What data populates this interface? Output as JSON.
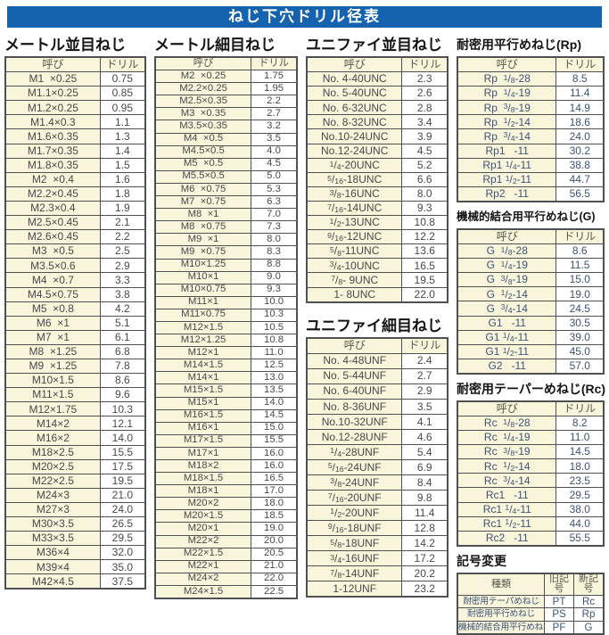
{
  "page_title": "ねじ下穴ドリル径表",
  "colors": {
    "title_bar_bg": "#1563ae",
    "title_bar_text": "#ffffff",
    "cell_yellow": "#f8f5da",
    "border_gray": "#4f5052",
    "text_dark": "#47494c",
    "text_navy": "#3d5378"
  },
  "col_headers": {
    "name": "呼び",
    "drill": "ドリル"
  },
  "corner_mark": "--",
  "tables": [
    {
      "id": "metric_coarse",
      "title": "メートル並目ねじ",
      "rows": [
        [
          "M1  ×0.25",
          "0.75"
        ],
        [
          "M1.1×0.25",
          "0.85"
        ],
        [
          "M1.2×0.25",
          "0.95"
        ],
        [
          "M1.4×0.3",
          "1.1"
        ],
        [
          "M1.6×0.35",
          "1.3"
        ],
        [
          "M1.7×0.35",
          "1.4"
        ],
        [
          "M1.8×0.35",
          "1.5"
        ],
        [
          "M2  ×0.4",
          "1.6"
        ],
        [
          "M2.2×0.45",
          "1.8"
        ],
        [
          "M2.3×0.4",
          "1.9"
        ],
        [
          "M2.5×0.45",
          "2.1"
        ],
        [
          "M2.6×0.45",
          "2.2"
        ],
        [
          "M3  ×0.5",
          "2.5"
        ],
        [
          "M3.5×0.6",
          "2.9"
        ],
        [
          "M4  ×0.7",
          "3.3"
        ],
        [
          "M4.5×0.75",
          "3.8"
        ],
        [
          "M5  ×0.8",
          "4.2"
        ],
        [
          "M6  ×1",
          "5.1"
        ],
        [
          "M7  ×1",
          "6.1"
        ],
        [
          "M8  ×1.25",
          "6.8"
        ],
        [
          "M9  ×1.25",
          "7.8"
        ],
        [
          "M10×1.5",
          "8.6"
        ],
        [
          "M11×1.5",
          "9.6"
        ],
        [
          "M12×1.75",
          "10.3"
        ],
        [
          "M14×2",
          "12.1"
        ],
        [
          "M16×2",
          "14.0"
        ],
        [
          "M18×2.5",
          "15.5"
        ],
        [
          "M20×2.5",
          "17.5"
        ],
        [
          "M22×2.5",
          "19.5"
        ],
        [
          "M24×3",
          "21.0"
        ],
        [
          "M27×3",
          "24.0"
        ],
        [
          "M30×3.5",
          "26.5"
        ],
        [
          "M33×3.5",
          "29.5"
        ],
        [
          "M36×4",
          "32.0"
        ],
        [
          "M39×4",
          "35.0"
        ],
        [
          "M42×4.5",
          "37.5"
        ]
      ]
    },
    {
      "id": "metric_fine",
      "title": "メートル細目ねじ",
      "rows": [
        [
          "M2  ×0.25",
          "1.75"
        ],
        [
          "M2.2×0.25",
          "1.95"
        ],
        [
          "M2.5×0.35",
          "2.2"
        ],
        [
          "M3  ×0.35",
          "2.7"
        ],
        [
          "M3.5×0.35",
          "3.2"
        ],
        [
          "M4  ×0.5",
          "3.5"
        ],
        [
          "M4.5×0.5",
          "4.0"
        ],
        [
          "M5  ×0.5",
          "4.5"
        ],
        [
          "M5.5×0.5",
          "5.0"
        ],
        [
          "M6  ×0.75",
          "5.3"
        ],
        [
          "M7  ×0.75",
          "6.3"
        ],
        [
          "M8  ×1",
          "7.0"
        ],
        [
          "M8  ×0.75",
          "7.3"
        ],
        [
          "M9  ×1",
          "8.0"
        ],
        [
          "M9  ×0.75",
          "8.3"
        ],
        [
          "M10×1.25",
          "8.8"
        ],
        [
          "M10×1",
          "9.0"
        ],
        [
          "M10×0.75",
          "9.3"
        ],
        [
          "M11×1",
          "10.0"
        ],
        [
          "M11×0.75",
          "10.3"
        ],
        [
          "M12×1.5",
          "10.5"
        ],
        [
          "M12×1.25",
          "10.8"
        ],
        [
          "M12×1",
          "11.0"
        ],
        [
          "M14×1.5",
          "12.5"
        ],
        [
          "M14×1",
          "13.0"
        ],
        [
          "M15×1.5",
          "13.5"
        ],
        [
          "M15×1",
          "14.0"
        ],
        [
          "M16×1.5",
          "14.5"
        ],
        [
          "M16×1",
          "15.0"
        ],
        [
          "M17×1.5",
          "15.5"
        ],
        [
          "M17×1",
          "16.0"
        ],
        [
          "M18×2",
          "16.0"
        ],
        [
          "M18×1.5",
          "16.5"
        ],
        [
          "M18×1",
          "17.0"
        ],
        [
          "M20×2",
          "18.0"
        ],
        [
          "M20×1.5",
          "18.5"
        ],
        [
          "M20×1",
          "19.0"
        ],
        [
          "M22×2",
          "20.0"
        ],
        [
          "M22×1.5",
          "20.5"
        ],
        [
          "M22×1",
          "21.0"
        ],
        [
          "M24×2",
          "22.0"
        ],
        [
          "M24×1.5",
          "22.5"
        ]
      ]
    },
    {
      "id": "unified_coarse",
      "title": "ユニファイ並目ねじ",
      "rows": [
        [
          "No. 4-40UNC",
          "2.3"
        ],
        [
          "No. 5-40UNC",
          "2.6"
        ],
        [
          "No. 6-32UNC",
          "2.8"
        ],
        [
          "No. 8-32UNC",
          "3.4"
        ],
        [
          "No.10-24UNC",
          "3.9"
        ],
        [
          "No.12-24UNC",
          "4.5"
        ],
        [
          "1/4-20UNC",
          "5.2"
        ],
        [
          "5/16-18UNC",
          "6.6"
        ],
        [
          "3/8-16UNC",
          "8.0"
        ],
        [
          "7/16-14UNC",
          "9.3"
        ],
        [
          "1/2-13UNC",
          "10.8"
        ],
        [
          "9/16-12UNC",
          "12.2"
        ],
        [
          "5/8-11UNC",
          "13.6"
        ],
        [
          "3/4-10UNC",
          "16.5"
        ],
        [
          "7/8- 9UNC",
          "19.5"
        ],
        [
          "1- 8UNC",
          "22.0"
        ]
      ]
    },
    {
      "id": "unified_fine",
      "title": "ユニファイ細目ねじ",
      "rows": [
        [
          "No. 4-48UNF",
          "2.4"
        ],
        [
          "No. 5-44UNF",
          "2.7"
        ],
        [
          "No. 6-40UNF",
          "2.9"
        ],
        [
          "No. 8-36UNF",
          "3.5"
        ],
        [
          "No.10-32UNF",
          "4.1"
        ],
        [
          "No.12-28UNF",
          "4.6"
        ],
        [
          "1/4-28UNF",
          "5.4"
        ],
        [
          "5/16-24UNF",
          "6.9"
        ],
        [
          "3/8-24UNF",
          "8.4"
        ],
        [
          "7/16-20UNF",
          "9.8"
        ],
        [
          "1/2-20UNF",
          "11.4"
        ],
        [
          "9/16-18UNF",
          "12.8"
        ],
        [
          "5/8-18UNF",
          "14.2"
        ],
        [
          "3/4-16UNF",
          "17.2"
        ],
        [
          "7/8-14UNF",
          "20.2"
        ],
        [
          "1-12UNF",
          "23.2"
        ]
      ]
    },
    {
      "id": "rp",
      "title": "耐密用平行めねじ(Rp)",
      "rows": [
        [
          "Rp  1/8-28",
          "8.5"
        ],
        [
          "Rp  1/4-19",
          "11.4"
        ],
        [
          "Rp  3/8-19",
          "14.9"
        ],
        [
          "Rp  1/2-14",
          "18.6"
        ],
        [
          "Rp  3/4-14",
          "24.0"
        ],
        [
          "Rp1   -11",
          "30.2"
        ],
        [
          "Rp1 1/4-11",
          "38.8"
        ],
        [
          "Rp1 1/2-11",
          "44.7"
        ],
        [
          "Rp2   -11",
          "56.5"
        ]
      ]
    },
    {
      "id": "g",
      "title": "機械的結合用平行めねじ(G)",
      "rows": [
        [
          "G  1/8-28",
          "8.6"
        ],
        [
          "G  1/4-19",
          "11.5"
        ],
        [
          "G  3/8-19",
          "15.0"
        ],
        [
          "G  1/2-14",
          "19.0"
        ],
        [
          "G  3/4-14",
          "24.5"
        ],
        [
          "G1   -11",
          "30.5"
        ],
        [
          "G1 1/4-11",
          "39.0"
        ],
        [
          "G1 1/2-11",
          "45.0"
        ],
        [
          "G2   -11",
          "57.0"
        ]
      ]
    },
    {
      "id": "rc",
      "title": "耐密用テーパーめねじ(Rc)",
      "rows": [
        [
          "Rc  1/8-28",
          "8.2"
        ],
        [
          "Rc  1/4-19",
          "11.0"
        ],
        [
          "Rc  3/8-19",
          "14.5"
        ],
        [
          "Rc  1/2-14",
          "18.0"
        ],
        [
          "Rc  3/4-14",
          "23.5"
        ],
        [
          "Rc1   -11",
          "29.5"
        ],
        [
          "Rc1 1/4-11",
          "38.0"
        ],
        [
          "Rc1 1/2-11",
          "44.0"
        ],
        [
          "Rc2   -11",
          "55.5"
        ]
      ]
    },
    {
      "id": "symbol_change",
      "title": "記号変更",
      "headers": [
        "種類",
        "旧記号",
        "新記号"
      ],
      "rows": [
        [
          "耐密用テーパめねじ",
          "PT",
          "Rc"
        ],
        [
          "耐密用平行めねじ",
          "PS",
          "Rp"
        ],
        [
          "機械的結合用平行めねじ",
          "PF",
          "G"
        ]
      ]
    }
  ]
}
